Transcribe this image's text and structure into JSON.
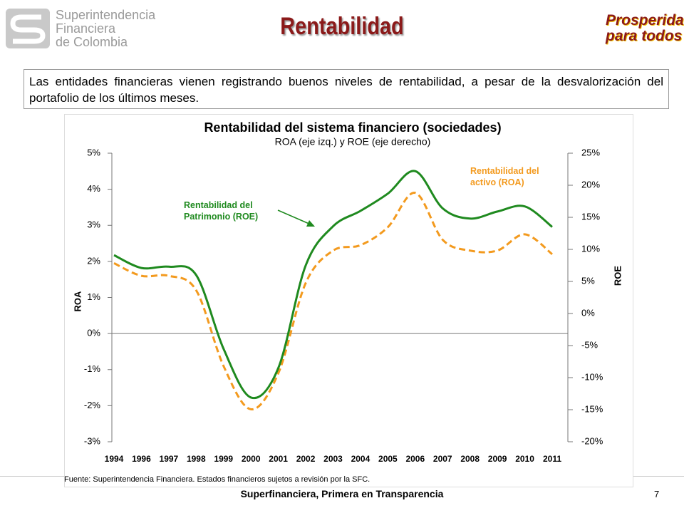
{
  "header": {
    "logo_lines": [
      "Superintendencia",
      "Financiera",
      "de Colombia"
    ],
    "title": "Rentabilidad",
    "brand_lines": [
      "Prosperidad",
      "para todos"
    ]
  },
  "intro": "Las entidades financieras vienen registrando buenos niveles de rentabilidad, a pesar de la desvalorización del portafolio de los últimos meses.",
  "chart_data": {
    "type": "line",
    "title": "Rentabilidad del sistema financiero (sociedades)",
    "subtitle": "ROA (eje izq.) y ROE (eje derecho)",
    "categories": [
      "1994",
      "1996",
      "1997",
      "1998",
      "1999",
      "2000",
      "2001",
      "2002",
      "2003",
      "2004",
      "2005",
      "2006",
      "2007",
      "2008",
      "2009",
      "2010",
      "2011"
    ],
    "series": [
      {
        "name": "Rentabilidad del activo (ROA)",
        "color": "#f39a1e",
        "dashed": true,
        "axis": "y",
        "values": [
          1.95,
          1.6,
          1.6,
          1.2,
          -0.9,
          -2.1,
          -1.1,
          1.4,
          2.3,
          2.45,
          2.95,
          3.9,
          2.6,
          2.3,
          2.3,
          2.75,
          2.2
        ]
      },
      {
        "name": "Rentabilidad del Patrimonio (ROE)",
        "color": "#1f8a1f",
        "dashed": false,
        "axis": "y2",
        "values": [
          9.1,
          7.1,
          7.3,
          6.0,
          -5.5,
          -13.1,
          -8.5,
          7.5,
          13.6,
          16.0,
          18.7,
          22.2,
          16.4,
          14.8,
          15.9,
          16.7,
          13.5
        ]
      }
    ],
    "ylabel": "ROA",
    "y2label": "ROE",
    "ylim": [
      -3,
      5
    ],
    "yticks": [
      {
        "value": -3,
        "label": "-3%"
      },
      {
        "value": -2,
        "label": "-2%"
      },
      {
        "value": -1,
        "label": "-1%"
      },
      {
        "value": 0,
        "label": "0%"
      },
      {
        "value": 1,
        "label": "1%"
      },
      {
        "value": 2,
        "label": "2%"
      },
      {
        "value": 3,
        "label": "3%"
      },
      {
        "value": 4,
        "label": "4%"
      },
      {
        "value": 5,
        "label": "5%"
      }
    ],
    "y2lim": [
      -20,
      25
    ],
    "y2ticks": [
      {
        "value": -20,
        "label": "-20%"
      },
      {
        "value": -15,
        "label": "-15%"
      },
      {
        "value": -10,
        "label": "-10%"
      },
      {
        "value": -5,
        "label": "-5%"
      },
      {
        "value": 0,
        "label": "0%"
      },
      {
        "value": 5,
        "label": "5%"
      },
      {
        "value": 10,
        "label": "10%"
      },
      {
        "value": 15,
        "label": "15%"
      },
      {
        "value": 20,
        "label": "20%"
      },
      {
        "value": 25,
        "label": "25%"
      }
    ],
    "grid": false,
    "source": "Fuente: Superintendencia Financiera. Estados financieros sujetos a revisión por la SFC."
  },
  "footer": {
    "text": "Superfinanciera, Primera en Transparencia",
    "page": "7"
  }
}
